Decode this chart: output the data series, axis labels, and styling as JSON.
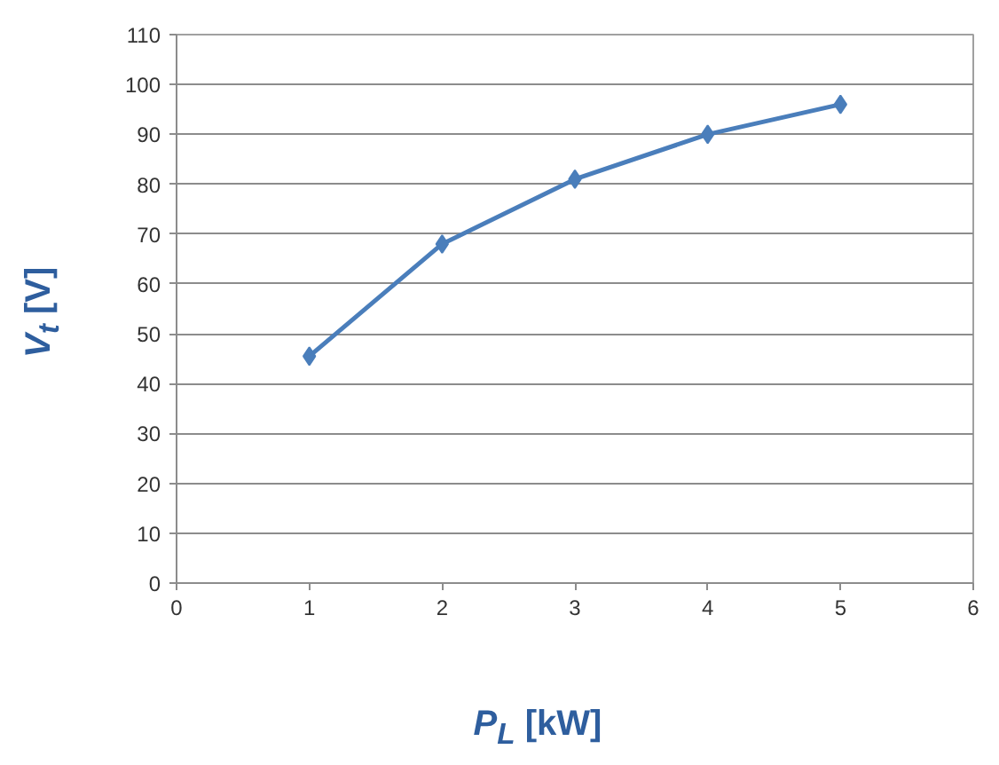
{
  "chart_data": {
    "type": "line",
    "xlabel": "P$_{L}$ [kW]",
    "ylabel": "V$_{t}$ [V]",
    "x": [
      1,
      2,
      3,
      4,
      5
    ],
    "series": [
      {
        "color": "#4a7ebb",
        "values": [
          45.5,
          68,
          81,
          90,
          96
        ]
      }
    ],
    "xlim": [
      0,
      6
    ],
    "xticks": [
      0,
      1,
      2,
      3,
      4,
      5,
      6
    ],
    "ylim": [
      0,
      110
    ],
    "yticks": [
      0,
      10,
      20,
      30,
      40,
      50,
      60,
      70,
      80,
      90,
      100,
      110
    ],
    "grid": "y",
    "marker": "diamond",
    "line_style": "solid"
  }
}
